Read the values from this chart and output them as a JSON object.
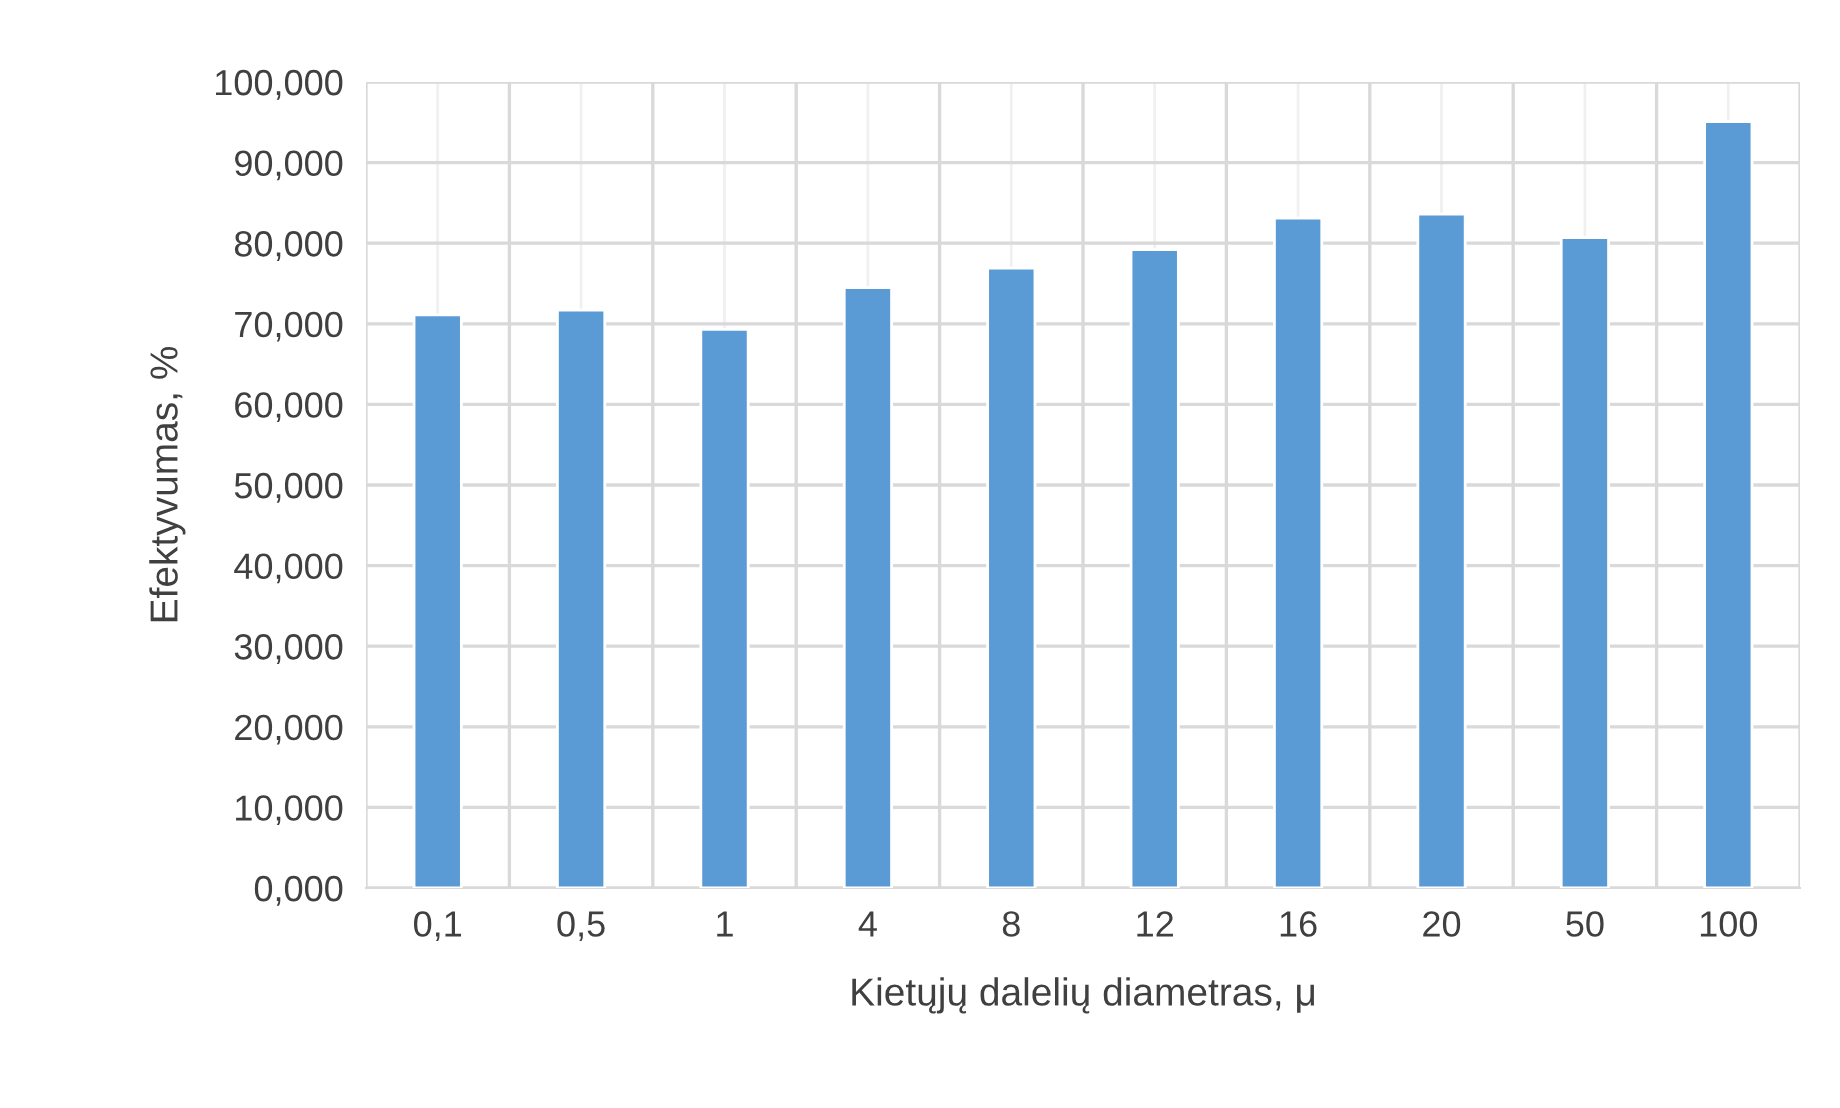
{
  "chart_data": {
    "type": "bar",
    "xlabel": "Kietųjų dalelių diametras, μ",
    "ylabel": "Efektyvumas, %",
    "categories": [
      "0,1",
      "0,5",
      "1",
      "4",
      "8",
      "12",
      "16",
      "20",
      "50",
      "100"
    ],
    "values": [
      71.1,
      71.7,
      69.3,
      74.5,
      76.9,
      79.2,
      83.1,
      83.6,
      80.7,
      95.1
    ],
    "color": "#5b9bd5",
    "ylim": [
      0,
      100
    ],
    "yticks": [
      {
        "value": 0,
        "label": "0,000"
      },
      {
        "value": 10,
        "label": "10,000"
      },
      {
        "value": 20,
        "label": "20,000"
      },
      {
        "value": 30,
        "label": "30,000"
      },
      {
        "value": 40,
        "label": "40,000"
      },
      {
        "value": 50,
        "label": "50,000"
      },
      {
        "value": 60,
        "label": "60,000"
      },
      {
        "value": 70,
        "label": "70,000"
      },
      {
        "value": 80,
        "label": "80,000"
      },
      {
        "value": 90,
        "label": "90,000"
      },
      {
        "value": 100,
        "label": "100,000"
      }
    ],
    "grid": true
  }
}
